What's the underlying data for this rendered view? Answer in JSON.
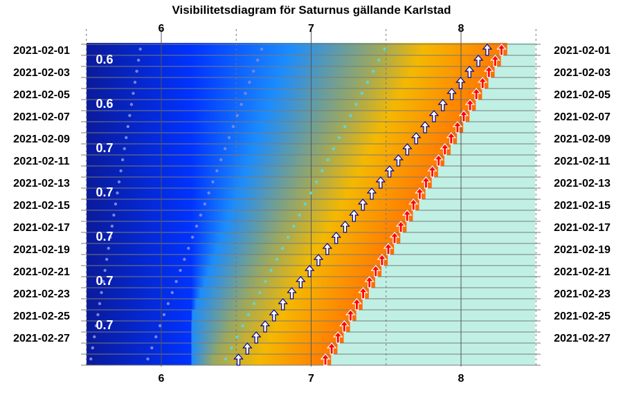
{
  "chart_data": {
    "type": "heatmap",
    "title": "Visibilitetsdiagram för Saturnus gällande Karlstad",
    "x_ticks": [
      "6",
      "7",
      "8"
    ],
    "x_tick_values": [
      6,
      7,
      8
    ],
    "xlim": [
      5.5,
      8.5
    ],
    "date_labels": [
      "2021-02-01",
      "2021-02-03",
      "2021-02-05",
      "2021-02-07",
      "2021-02-09",
      "2021-02-11",
      "2021-02-13",
      "2021-02-15",
      "2021-02-17",
      "2021-02-19",
      "2021-02-21",
      "2021-02-23",
      "2021-02-25",
      "2021-02-27"
    ],
    "magnitude_labels": [
      "0.6",
      "0.6",
      "0.7",
      "0.7",
      "0.7",
      "0.7",
      "0.7"
    ],
    "rows": 29,
    "rise_times": {
      "first": 8.175,
      "last": 6.515
    },
    "sunrise_times": {
      "first": 8.27,
      "last": 7.095
    },
    "twilight_dots_1": {
      "first": 7.49,
      "last": 6.43
    },
    "twilight_dots_2": {
      "first": 6.67,
      "last": 5.91
    },
    "twilight_dots_3": {
      "first": 5.86,
      "last": 5.53
    },
    "colors": {
      "night": "#0a1a9a",
      "blue": "#0033ff",
      "light_blue": "#1a8cff",
      "gold": "#f5b800",
      "orange": "#ff7f00",
      "day": "#c0f0e4",
      "rise_arrow": "#ffffff",
      "rise_arrow_outline": "#00008b",
      "sun_arrow": "#ff0000",
      "dots": "#5ad6e0"
    }
  }
}
